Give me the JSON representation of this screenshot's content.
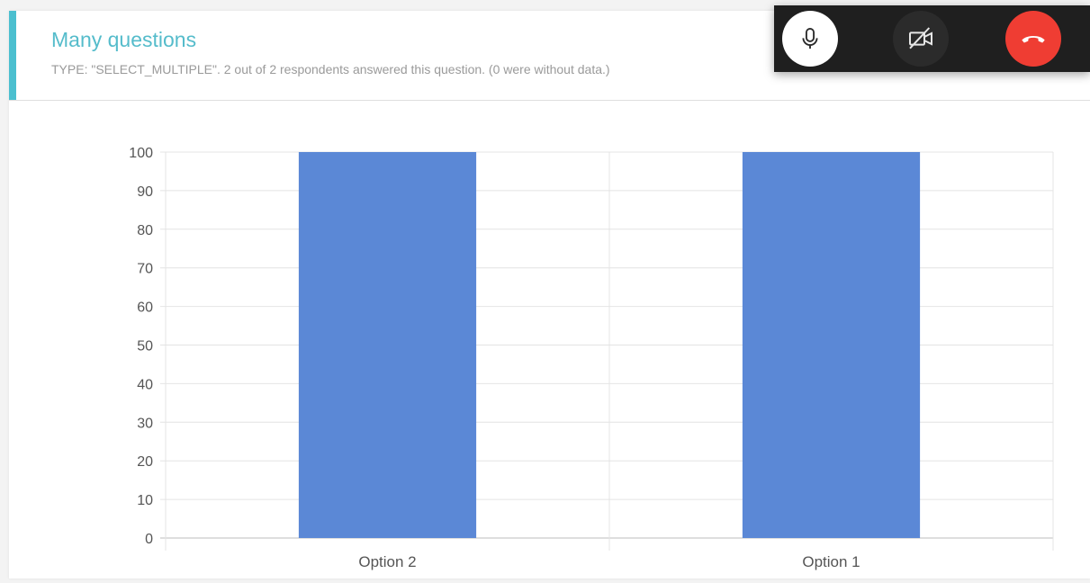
{
  "question": {
    "title": "Many questions",
    "meta": "TYPE: \"SELECT_MULTIPLE\". 2 out of 2 respondents answered this question. (0 were without data.)"
  },
  "call_controls": {
    "mic_icon": "microphone-icon",
    "camera_icon": "camera-off-icon",
    "hangup_icon": "phone-hangup-icon",
    "hangup_color": "#ef3d33"
  },
  "chart_data": {
    "type": "bar",
    "categories": [
      "Option 2",
      "Option 1"
    ],
    "values": [
      100,
      100
    ],
    "ylim": [
      0,
      100
    ],
    "yticks": [
      "0",
      "10",
      "20",
      "30",
      "40",
      "50",
      "60",
      "70",
      "80",
      "90",
      "100"
    ],
    "bar_color": "#5b88d6",
    "grid": true
  }
}
